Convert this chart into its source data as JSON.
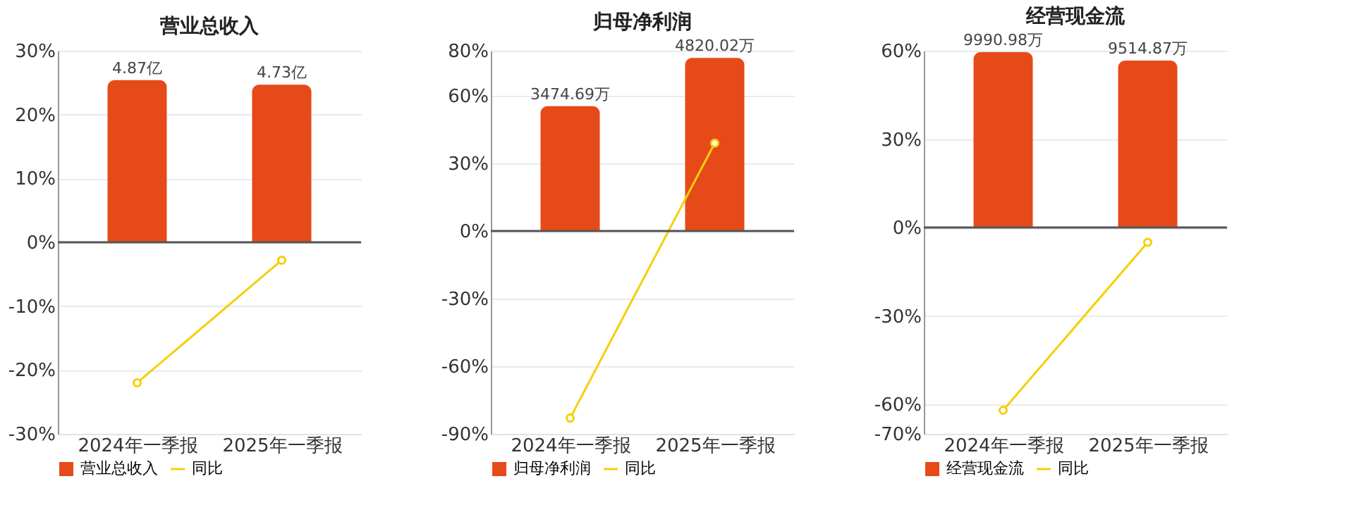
{
  "chart_data": [
    {
      "type": "bar",
      "title": "营业总收入",
      "categories": [
        "2024年一季报",
        "2025年一季报"
      ],
      "series": [
        {
          "name": "营业总收入",
          "color": "#e64a19",
          "axis": "y2",
          "values": [
            4.87,
            4.73
          ],
          "value_labels": [
            "4.87亿",
            "4.73亿"
          ]
        },
        {
          "name": "同比",
          "type": "line",
          "color": "#f5cf0a",
          "values": [
            -22,
            -2.8
          ]
        }
      ],
      "ylim": [
        -30,
        30
      ],
      "yticks": [
        {
          "value": -30,
          "label": "-30%"
        },
        {
          "value": -20,
          "label": "-20%"
        },
        {
          "value": -10,
          "label": "-10%"
        },
        {
          "value": 0,
          "label": "0%"
        },
        {
          "value": 10,
          "label": "10%"
        },
        {
          "value": 20,
          "label": "20%"
        },
        {
          "value": 30,
          "label": "30%"
        }
      ],
      "y2lim": [
        -5.75,
        5.75
      ],
      "ref_lines": [
        {
          "axis": "y",
          "value": 0,
          "color": "#555555"
        }
      ],
      "grid": "y",
      "legend": "bottom",
      "marker": "circle",
      "tick_labels": [
        "x",
        "y"
      ]
    },
    {
      "type": "bar",
      "title": "归母净利润",
      "categories": [
        "2024年一季报",
        "2025年一季报"
      ],
      "series": [
        {
          "name": "归母净利润",
          "color": "#e64a19",
          "axis": "y2",
          "values": [
            3474.69,
            4820.02
          ],
          "value_labels": [
            "3474.69万",
            "4820.02万"
          ]
        },
        {
          "name": "同比",
          "type": "line",
          "color": "#f5cf0a",
          "values": [
            -83,
            39
          ]
        }
      ],
      "ylim": [
        -90,
        80
      ],
      "yticks": [
        {
          "value": -90,
          "label": "-90%"
        },
        {
          "value": -60,
          "label": "-60%"
        },
        {
          "value": -30,
          "label": "-30%"
        },
        {
          "value": 0,
          "label": "0%"
        },
        {
          "value": 30,
          "label": "30%"
        },
        {
          "value": 60,
          "label": "60%"
        },
        {
          "value": 80,
          "label": "80%"
        }
      ],
      "y2lim": [
        -5649,
        5021
      ],
      "ref_lines": [
        {
          "axis": "y",
          "value": 0,
          "color": "#555555"
        }
      ],
      "grid": "y",
      "legend": "bottom",
      "marker": "circle",
      "tick_labels": [
        "x",
        "y"
      ]
    },
    {
      "type": "bar",
      "title": "经营现金流",
      "categories": [
        "2024年一季报",
        "2025年一季报"
      ],
      "series": [
        {
          "name": "经营现金流",
          "color": "#e64a19",
          "axis": "y2",
          "values": [
            9990.98,
            9514.87
          ],
          "value_labels": [
            "9990.98万",
            "9514.87万"
          ]
        },
        {
          "name": "同比",
          "type": "line",
          "color": "#f5cf0a",
          "values": [
            -62,
            -5
          ]
        }
      ],
      "ylim": [
        -70,
        60
      ],
      "yticks": [
        {
          "value": -70,
          "label": "-70%"
        },
        {
          "value": -60,
          "label": "-60%"
        },
        {
          "value": -30,
          "label": "-30%"
        },
        {
          "value": 0,
          "label": "0%"
        },
        {
          "value": 30,
          "label": "30%"
        },
        {
          "value": 60,
          "label": "60%"
        }
      ],
      "y2lim": [
        -11754,
        10075
      ],
      "ref_lines": [
        {
          "axis": "y",
          "value": 0,
          "color": "#555555"
        }
      ],
      "grid": "y",
      "legend": "bottom",
      "marker": "circle",
      "tick_labels": [
        "x",
        "y"
      ]
    }
  ]
}
